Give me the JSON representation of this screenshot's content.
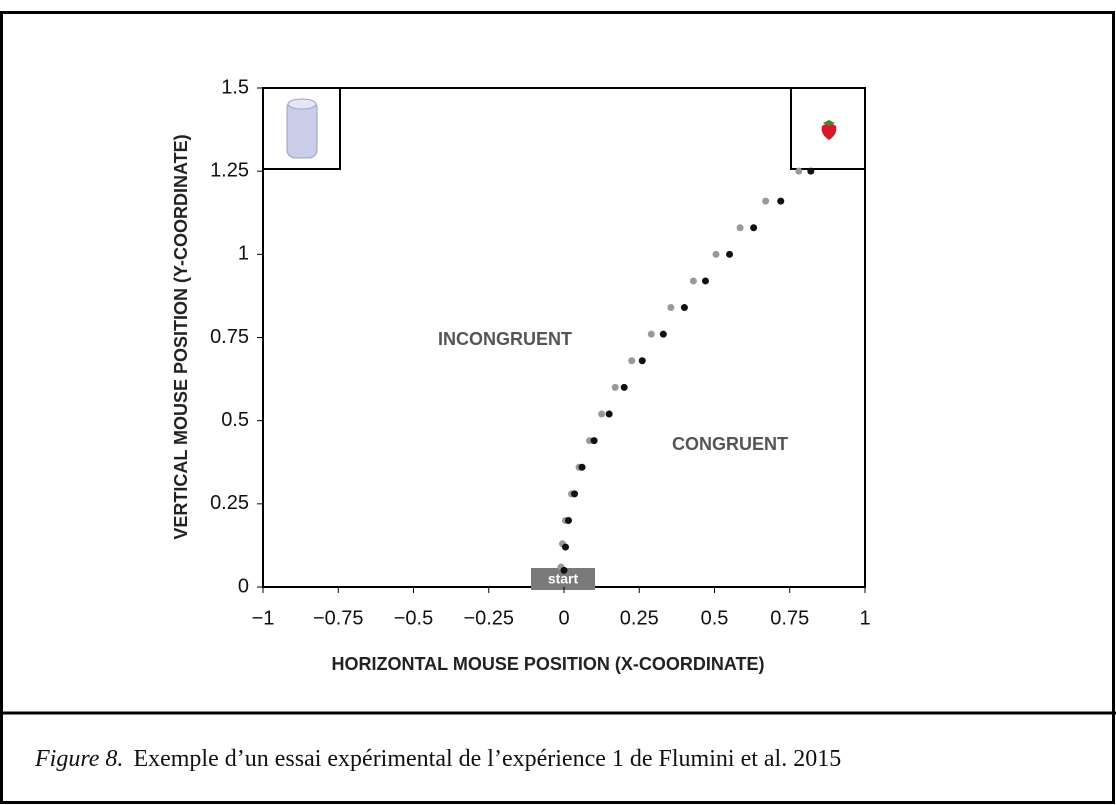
{
  "chart_data": {
    "type": "scatter",
    "xlabel": "HORIZONTAL MOUSE POSITION (X-COORDINATE)",
    "ylabel": "VERTICAL MOUSE POSITION (Y-COORDINATE)",
    "xlim": [
      -1,
      1
    ],
    "ylim": [
      0,
      1.5
    ],
    "xticks": [
      {
        "value": -1,
        "label": "−1"
      },
      {
        "value": -0.75,
        "label": "−0.75"
      },
      {
        "value": -0.5,
        "label": "−0.5"
      },
      {
        "value": -0.25,
        "label": "−0.25"
      },
      0,
      0.25,
      0.5,
      0.75,
      1
    ],
    "yticks": [
      0,
      0.25,
      0.5,
      0.75,
      1,
      1.25,
      1.5
    ],
    "start_label": "start",
    "series": [
      {
        "name": "INCONGRUENT",
        "color": "#999999",
        "x": [
          -0.01,
          -0.005,
          0.005,
          0.025,
          0.05,
          0.085,
          0.125,
          0.17,
          0.225,
          0.29,
          0.355,
          0.43,
          0.505,
          0.585,
          0.67,
          0.78
        ],
        "values": [
          0.06,
          0.13,
          0.2,
          0.28,
          0.36,
          0.44,
          0.52,
          0.6,
          0.68,
          0.76,
          0.84,
          0.92,
          1.0,
          1.08,
          1.16,
          1.25
        ]
      },
      {
        "name": "CONGRUENT",
        "color": "#111111",
        "x": [
          0,
          0.005,
          0.015,
          0.035,
          0.06,
          0.1,
          0.15,
          0.2,
          0.26,
          0.33,
          0.4,
          0.47,
          0.55,
          0.63,
          0.72,
          0.82
        ],
        "values": [
          0.05,
          0.12,
          0.2,
          0.28,
          0.36,
          0.44,
          0.52,
          0.6,
          0.68,
          0.76,
          0.84,
          0.92,
          1.0,
          1.08,
          1.16,
          1.25
        ]
      }
    ]
  },
  "caption": {
    "label": "Figure 8.",
    "text": "Exemple d’un essai expérimental de l’expérience 1 de Flumini et al. 2015"
  }
}
